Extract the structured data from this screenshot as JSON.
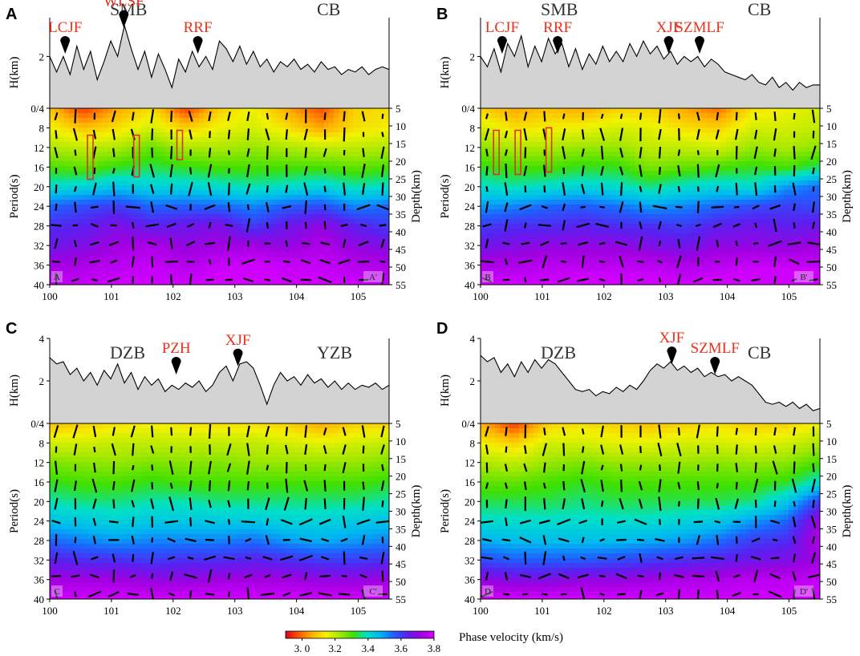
{
  "colorbar": {
    "title": "Phase velocity (km/s)",
    "ticks": [
      "3. 0",
      "3.2",
      "3.4",
      "3.6",
      "3.8"
    ],
    "tick_values": [
      3.0,
      3.2,
      3.4,
      3.6,
      3.8
    ],
    "range": [
      2.9,
      3.8
    ],
    "colors": [
      "#d9001a",
      "#ff5a00",
      "#ffb400",
      "#f2f200",
      "#a8e800",
      "#3ee000",
      "#00e0c8",
      "#00b8f0",
      "#1e60ff",
      "#5a20f0",
      "#a000e0",
      "#d000ff"
    ]
  },
  "chart_data": [
    {
      "type": "heatmap",
      "panel": "A",
      "left_block": "SMB",
      "right_block": "CB",
      "faults": [
        {
          "name": "LCJF",
          "lon": 100.25
        },
        {
          "name": "WLSF",
          "lon": 101.2
        },
        {
          "name": "RRF",
          "lon": 102.4
        }
      ],
      "profile_start": "A",
      "profile_end": "A'",
      "x_ticks": [
        "100",
        "101",
        "102",
        "103",
        "104",
        "105"
      ],
      "x_range": [
        100,
        105.5
      ],
      "period_ticks": [
        "0/4",
        "8",
        "12",
        "16",
        "20",
        "24",
        "28",
        "32",
        "36",
        "40"
      ],
      "depth_ticks": [
        "5",
        "10",
        "15",
        "20",
        "25",
        "30",
        "35",
        "40",
        "45",
        "50",
        "55"
      ],
      "elev_ticks": [
        "2"
      ],
      "elev_range": [
        0,
        3.5
      ],
      "ylabel_left": "Period(s)",
      "ylabel_right": "Depth(km)",
      "elev_label": "H(km)",
      "boxes": [
        {
          "lon": 100.65,
          "p0": 9.5,
          "p1": 18.5
        },
        {
          "lon": 101.4,
          "p0": 9.5,
          "p1": 18
        },
        {
          "lon": 102.1,
          "p0": 8.5,
          "p1": 14.5
        }
      ],
      "elevation": [
        2.0,
        1.4,
        2.0,
        1.3,
        2.4,
        1.5,
        2.2,
        1.1,
        1.8,
        2.6,
        2.0,
        3.2,
        2.3,
        1.5,
        2.2,
        1.2,
        2.1,
        1.5,
        0.8,
        1.9,
        1.4,
        2.2,
        1.6,
        2.0,
        1.5,
        2.6,
        2.3,
        1.8,
        2.4,
        1.7,
        2.2,
        1.6,
        1.9,
        1.4,
        1.8,
        1.6,
        1.9,
        1.5,
        1.7,
        1.4,
        1.8,
        1.5,
        1.6,
        1.3,
        1.5,
        1.4,
        1.6,
        1.3,
        1.5,
        1.6,
        1.5
      ],
      "velocity_grid": [
        [
          3.08,
          2.95,
          3.05,
          3.12,
          2.95,
          3.1,
          3.15,
          3.05,
          2.97,
          3.1,
          3.12
        ],
        [
          3.15,
          3.08,
          3.12,
          3.18,
          3.1,
          3.15,
          3.18,
          3.12,
          3.05,
          3.12,
          3.14
        ],
        [
          3.22,
          3.2,
          3.22,
          3.28,
          3.22,
          3.22,
          3.24,
          3.22,
          3.2,
          3.2,
          3.22
        ],
        [
          3.3,
          3.28,
          3.32,
          3.34,
          3.32,
          3.3,
          3.3,
          3.3,
          3.3,
          3.28,
          3.3
        ],
        [
          3.4,
          3.42,
          3.45,
          3.42,
          3.42,
          3.4,
          3.38,
          3.4,
          3.42,
          3.38,
          3.4
        ],
        [
          3.55,
          3.58,
          3.6,
          3.55,
          3.56,
          3.55,
          3.52,
          3.56,
          3.58,
          3.52,
          3.55
        ],
        [
          3.62,
          3.64,
          3.68,
          3.64,
          3.66,
          3.68,
          3.6,
          3.66,
          3.7,
          3.64,
          3.6
        ],
        [
          3.66,
          3.68,
          3.72,
          3.74,
          3.7,
          3.72,
          3.72,
          3.7,
          3.74,
          3.7,
          3.68
        ],
        [
          3.72,
          3.74,
          3.76,
          3.78,
          3.75,
          3.78,
          3.8,
          3.78,
          3.78,
          3.75,
          3.74
        ],
        [
          3.78,
          3.78,
          3.8,
          3.8,
          3.8,
          3.82,
          3.82,
          3.8,
          3.8,
          3.8,
          3.78
        ]
      ]
    },
    {
      "type": "heatmap",
      "panel": "B",
      "left_block": "SMB",
      "right_block": "CB",
      "faults": [
        {
          "name": "LCJF",
          "lon": 100.35
        },
        {
          "name": "RRF",
          "lon": 101.25
        },
        {
          "name": "XJF",
          "lon": 103.05
        },
        {
          "name": "SZMLF",
          "lon": 103.55
        }
      ],
      "profile_start": "B",
      "profile_end": "B'",
      "x_ticks": [
        "100",
        "101",
        "102",
        "103",
        "104",
        "105"
      ],
      "x_range": [
        100,
        105.5
      ],
      "period_ticks": [
        "0/4",
        "8",
        "12",
        "16",
        "20",
        "24",
        "28",
        "32",
        "36",
        "40"
      ],
      "depth_ticks": [
        "5",
        "10",
        "15",
        "20",
        "25",
        "30",
        "35",
        "40",
        "45",
        "50",
        "55"
      ],
      "elev_ticks": [
        "2"
      ],
      "elev_range": [
        0,
        3.5
      ],
      "ylabel_left": "Period(s)",
      "ylabel_right": "Depth(km)",
      "elev_label": "H(km)",
      "boxes": [
        {
          "lon": 100.25,
          "p0": 8.5,
          "p1": 17.5
        },
        {
          "lon": 100.6,
          "p0": 8.5,
          "p1": 17.5
        },
        {
          "lon": 101.1,
          "p0": 8,
          "p1": 17
        }
      ],
      "elevation": [
        2.0,
        1.6,
        2.3,
        1.4,
        2.5,
        2.0,
        2.8,
        1.6,
        2.4,
        1.8,
        2.7,
        2.1,
        2.5,
        1.6,
        2.3,
        1.5,
        2.1,
        1.7,
        2.4,
        1.8,
        2.2,
        1.8,
        2.5,
        2.0,
        2.6,
        2.1,
        2.4,
        1.9,
        2.2,
        1.7,
        2.0,
        1.8,
        2.0,
        1.6,
        1.9,
        1.7,
        1.4,
        1.3,
        1.2,
        1.1,
        1.3,
        1.0,
        0.9,
        1.2,
        0.8,
        1.0,
        0.7,
        1.0,
        0.8,
        0.9,
        0.9
      ],
      "velocity_grid": [
        [
          3.1,
          3.05,
          3.08,
          3.05,
          3.1,
          3.1,
          3.05,
          3.0,
          3.12,
          3.15,
          3.18
        ],
        [
          3.18,
          3.12,
          3.14,
          3.15,
          3.18,
          3.16,
          3.12,
          3.1,
          3.18,
          3.18,
          3.2
        ],
        [
          3.25,
          3.22,
          3.22,
          3.24,
          3.24,
          3.2,
          3.2,
          3.18,
          3.24,
          3.22,
          3.25
        ],
        [
          3.32,
          3.3,
          3.3,
          3.32,
          3.32,
          3.26,
          3.28,
          3.3,
          3.32,
          3.3,
          3.35
        ],
        [
          3.4,
          3.38,
          3.4,
          3.42,
          3.4,
          3.36,
          3.4,
          3.42,
          3.4,
          3.5,
          3.55
        ],
        [
          3.5,
          3.52,
          3.55,
          3.56,
          3.54,
          3.5,
          3.52,
          3.55,
          3.58,
          3.6,
          3.58
        ],
        [
          3.6,
          3.62,
          3.62,
          3.64,
          3.62,
          3.62,
          3.6,
          3.64,
          3.66,
          3.64,
          3.66
        ],
        [
          3.66,
          3.68,
          3.7,
          3.7,
          3.7,
          3.68,
          3.66,
          3.7,
          3.7,
          3.7,
          3.72
        ],
        [
          3.74,
          3.74,
          3.76,
          3.76,
          3.76,
          3.76,
          3.74,
          3.76,
          3.78,
          3.78,
          3.78
        ],
        [
          3.8,
          3.8,
          3.8,
          3.82,
          3.82,
          3.82,
          3.8,
          3.82,
          3.84,
          3.84,
          3.84
        ]
      ]
    },
    {
      "type": "heatmap",
      "panel": "C",
      "left_block": "DZB",
      "right_block": "YZB",
      "faults": [
        {
          "name": "PZH",
          "lon": 102.05
        },
        {
          "name": "XJF",
          "lon": 103.05
        }
      ],
      "profile_start": "C",
      "profile_end": "C'",
      "x_ticks": [
        "100",
        "101",
        "102",
        "103",
        "104",
        "105"
      ],
      "x_range": [
        100,
        105.5
      ],
      "period_ticks": [
        "0/4",
        "8",
        "12",
        "16",
        "20",
        "24",
        "28",
        "32",
        "36",
        "40"
      ],
      "depth_ticks": [
        "5",
        "10",
        "15",
        "20",
        "25",
        "30",
        "35",
        "40",
        "45",
        "50",
        "55"
      ],
      "elev_ticks": [
        "2",
        "4"
      ],
      "elev_range": [
        0,
        4
      ],
      "ylabel_left": "Period(s)",
      "ylabel_right": "Depth(km)",
      "elev_label": "H(km)",
      "boxes": [],
      "elevation": [
        3.1,
        2.8,
        2.9,
        2.3,
        2.6,
        2.0,
        2.4,
        1.8,
        2.5,
        2.1,
        2.8,
        1.9,
        2.4,
        1.6,
        2.2,
        1.8,
        2.1,
        1.5,
        1.8,
        1.6,
        1.9,
        1.7,
        2.0,
        1.5,
        1.8,
        2.4,
        2.7,
        2.0,
        2.8,
        2.9,
        2.6,
        1.8,
        0.9,
        1.8,
        2.4,
        2.0,
        2.2,
        1.8,
        2.3,
        1.9,
        2.1,
        1.7,
        2.0,
        1.6,
        1.9,
        1.6,
        1.8,
        1.7,
        1.9,
        1.6,
        1.8
      ],
      "velocity_grid": [
        [
          3.08,
          3.1,
          3.12,
          3.14,
          3.12,
          3.12,
          3.12,
          3.1,
          3.05,
          3.1,
          3.1
        ],
        [
          3.18,
          3.18,
          3.2,
          3.2,
          3.2,
          3.2,
          3.2,
          3.18,
          3.16,
          3.18,
          3.2
        ],
        [
          3.26,
          3.25,
          3.24,
          3.26,
          3.25,
          3.26,
          3.24,
          3.24,
          3.24,
          3.24,
          3.26
        ],
        [
          3.32,
          3.3,
          3.3,
          3.32,
          3.3,
          3.3,
          3.3,
          3.3,
          3.3,
          3.3,
          3.32
        ],
        [
          3.38,
          3.36,
          3.36,
          3.38,
          3.38,
          3.36,
          3.36,
          3.36,
          3.36,
          3.36,
          3.38
        ],
        [
          3.45,
          3.44,
          3.42,
          3.44,
          3.44,
          3.44,
          3.44,
          3.42,
          3.42,
          3.44,
          3.45
        ],
        [
          3.55,
          3.52,
          3.5,
          3.52,
          3.52,
          3.52,
          3.54,
          3.5,
          3.48,
          3.5,
          3.52
        ],
        [
          3.64,
          3.62,
          3.62,
          3.6,
          3.62,
          3.62,
          3.64,
          3.62,
          3.6,
          3.6,
          3.62
        ],
        [
          3.72,
          3.72,
          3.72,
          3.7,
          3.7,
          3.72,
          3.72,
          3.72,
          3.7,
          3.7,
          3.72
        ],
        [
          3.8,
          3.8,
          3.8,
          3.8,
          3.8,
          3.8,
          3.8,
          3.8,
          3.8,
          3.8,
          3.8
        ]
      ]
    },
    {
      "type": "heatmap",
      "panel": "D",
      "left_block": "DZB",
      "right_block": "CB",
      "faults": [
        {
          "name": "XJF",
          "lon": 103.1
        },
        {
          "name": "SZMLF",
          "lon": 103.8
        }
      ],
      "profile_start": "D",
      "profile_end": "D'",
      "x_ticks": [
        "100",
        "101",
        "102",
        "103",
        "104",
        "105"
      ],
      "x_range": [
        100,
        105.5
      ],
      "period_ticks": [
        "0/4",
        "8",
        "12",
        "16",
        "20",
        "24",
        "28",
        "32",
        "36",
        "40"
      ],
      "depth_ticks": [
        "5",
        "10",
        "15",
        "20",
        "25",
        "30",
        "35",
        "40",
        "45",
        "50",
        "55"
      ],
      "elev_ticks": [
        "2",
        "4"
      ],
      "elev_range": [
        0,
        4
      ],
      "ylabel_left": "Period(s)",
      "ylabel_right": "Depth(km)",
      "elev_label": "H(km)",
      "boxes": [],
      "elevation": [
        3.2,
        2.9,
        3.1,
        2.4,
        2.8,
        2.2,
        2.9,
        2.4,
        3.0,
        2.6,
        3.0,
        2.8,
        2.4,
        2.0,
        1.6,
        1.5,
        1.6,
        1.3,
        1.5,
        1.4,
        1.7,
        1.5,
        1.8,
        1.6,
        2.0,
        2.5,
        2.8,
        2.6,
        2.9,
        2.5,
        2.7,
        2.4,
        2.6,
        2.2,
        2.4,
        2.2,
        2.3,
        2.0,
        2.2,
        2.0,
        1.8,
        1.4,
        1.0,
        0.9,
        1.0,
        0.8,
        1.0,
        0.7,
        0.9,
        0.6,
        0.7
      ],
      "velocity_grid": [
        [
          3.06,
          2.95,
          3.1,
          3.12,
          3.1,
          3.08,
          3.1,
          3.12,
          3.1,
          3.1,
          3.15
        ],
        [
          3.14,
          3.1,
          3.18,
          3.18,
          3.16,
          3.16,
          3.18,
          3.18,
          3.16,
          3.18,
          3.22
        ],
        [
          3.22,
          3.2,
          3.24,
          3.26,
          3.24,
          3.24,
          3.24,
          3.25,
          3.24,
          3.25,
          3.3
        ],
        [
          3.28,
          3.28,
          3.3,
          3.32,
          3.3,
          3.3,
          3.3,
          3.3,
          3.3,
          3.32,
          3.4
        ],
        [
          3.34,
          3.34,
          3.34,
          3.36,
          3.34,
          3.34,
          3.34,
          3.34,
          3.36,
          3.44,
          3.6
        ],
        [
          3.4,
          3.4,
          3.4,
          3.4,
          3.4,
          3.4,
          3.42,
          3.44,
          3.5,
          3.55,
          3.72
        ],
        [
          3.48,
          3.46,
          3.46,
          3.46,
          3.46,
          3.48,
          3.5,
          3.54,
          3.6,
          3.62,
          3.75
        ],
        [
          3.58,
          3.56,
          3.56,
          3.56,
          3.58,
          3.6,
          3.62,
          3.64,
          3.66,
          3.68,
          3.72
        ],
        [
          3.7,
          3.68,
          3.68,
          3.7,
          3.7,
          3.72,
          3.74,
          3.74,
          3.76,
          3.76,
          3.78
        ],
        [
          3.8,
          3.8,
          3.8,
          3.8,
          3.8,
          3.8,
          3.8,
          3.8,
          3.8,
          3.8,
          3.8
        ]
      ]
    }
  ]
}
